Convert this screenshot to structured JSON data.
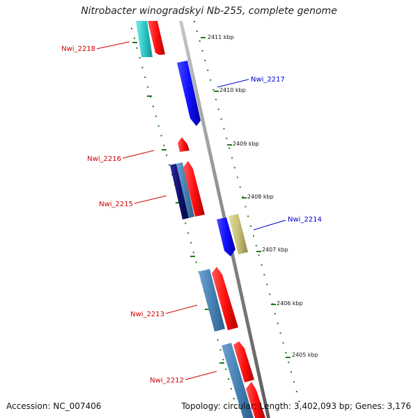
{
  "title": "Nitrobacter winogradskyi Nb-255, complete genome",
  "footer": {
    "accession": "Accession: NC_007406",
    "summary": "Topology: circular; Length: 3,402,093 bp; Genes: 3,176"
  },
  "colors": {
    "reverse_label": "#cc0000",
    "forward_label": "#0000cc",
    "ruler_tick": "#1a7a1a",
    "axis": "#888888"
  },
  "ruler_labels": [
    "2411 kbp",
    "2410 kbp",
    "2409 kbp",
    "2408 kbp",
    "2407 kbp",
    "2406 kbp",
    "2405 kbp"
  ],
  "gene_labels": [
    {
      "text": "Nwi_2218",
      "strand": "reverse"
    },
    {
      "text": "Nwi_2217",
      "strand": "forward"
    },
    {
      "text": "Nwi_2216",
      "strand": "reverse"
    },
    {
      "text": "Nwi_2215",
      "strand": "reverse"
    },
    {
      "text": "Nwi_2214",
      "strand": "forward"
    },
    {
      "text": "Nwi_2213",
      "strand": "reverse"
    },
    {
      "text": "Nwi_2212",
      "strand": "reverse"
    }
  ]
}
